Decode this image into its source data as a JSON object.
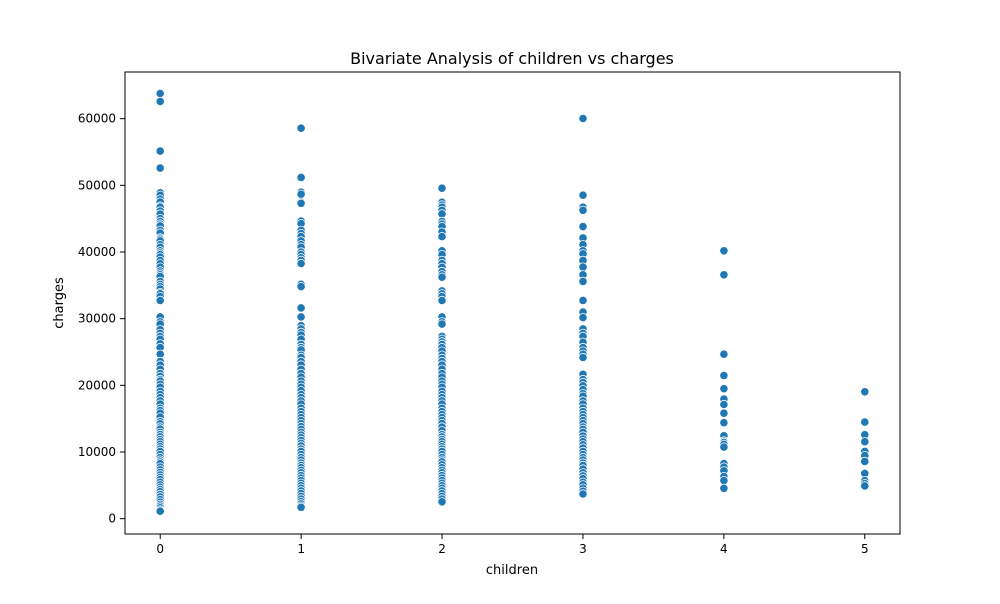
{
  "chart_data": {
    "type": "scatter",
    "title": "Bivariate Analysis of children vs charges",
    "xlabel": "children",
    "ylabel": "charges",
    "xlim": [
      -0.25,
      5.25
    ],
    "ylim": [
      -2300,
      67000
    ],
    "xticks": [
      0,
      1,
      2,
      3,
      4,
      5
    ],
    "yticks": [
      0,
      10000,
      20000,
      30000,
      40000,
      50000,
      60000
    ],
    "grid": false,
    "marker_color": "#1f77b4",
    "points": [
      {
        "x": 0,
        "y": [
          63770,
          62590,
          55135,
          52590,
          48885,
          48517,
          47928,
          47496,
          46889,
          46718,
          46151,
          45702,
          45008,
          44585,
          44202,
          43921,
          43254,
          42856,
          42112,
          41919,
          41661,
          41097,
          40720,
          40182,
          39871,
          39611,
          39241,
          38711,
          38245,
          37742,
          37165,
          36838,
          36580,
          36307,
          35585,
          35160,
          34806,
          34439,
          33907,
          33732,
          33307,
          32734,
          30260,
          29523,
          29186,
          28340,
          27808,
          27346,
          26926,
          26236,
          25678,
          24667,
          23568,
          23045,
          22413,
          21771,
          21348,
          20878,
          20630,
          20177,
          19719,
          19107,
          18608,
          18157,
          17663,
          17179,
          16577,
          16232,
          15820,
          15230,
          14571,
          14235,
          13747,
          13451,
          12950,
          12629,
          12270,
          11881,
          11538,
          11165,
          10796,
          10450,
          10085,
          9617,
          9182,
          8782,
          8520,
          8240,
          7740,
          7323,
          6948,
          6571,
          6198,
          5855,
          5472,
          5080,
          4719,
          4380,
          4040,
          3645,
          3260,
          2855,
          2480,
          2150,
          1880,
          1630,
          1300,
          1121
        ]
      },
      {
        "x": 1,
        "y": [
          58571,
          51195,
          48970,
          48673,
          47462,
          47305,
          44641,
          44260,
          43254,
          42760,
          42303,
          41661,
          41097,
          40720,
          40003,
          39611,
          39125,
          38746,
          38282,
          35160,
          34806,
          31620,
          30260,
          28950,
          28468,
          27941,
          27533,
          26926,
          26140,
          25678,
          25309,
          24513,
          24180,
          23568,
          23045,
          22412,
          21771,
          21232,
          20630,
          20177,
          19719,
          19199,
          18608,
          18157,
          17663,
          17179,
          16577,
          16069,
          15612,
          15161,
          14711,
          14254,
          13822,
          13405,
          12950,
          12557,
          12146,
          11735,
          11305,
          10915,
          10450,
          10085,
          9617,
          9182,
          8782,
          8347,
          7985,
          7640,
          7256,
          6875,
          6471,
          6082,
          5705,
          5325,
          4949,
          4564,
          4160,
          3756,
          3353,
          2955,
          2563,
          2213,
          1880,
          1712
        ]
      },
      {
        "x": 2,
        "y": [
          49577,
          47462,
          47055,
          46718,
          46255,
          45710,
          44585,
          44202,
          43813,
          42983,
          42303,
          40182,
          39611,
          38746,
          38282,
          37701,
          37079,
          36580,
          36219,
          34166,
          33732,
          33307,
          32734,
          30260,
          29523,
          29186,
          27346,
          26926,
          26509,
          26140,
          25678,
          25128,
          24513,
          24040,
          23568,
          23045,
          22413,
          21771,
          21232,
          20630,
          20177,
          19719,
          19107,
          18608,
          18157,
          17663,
          17179,
          16577,
          16069,
          15612,
          15161,
          14711,
          14254,
          13747,
          13198,
          12629,
          12270,
          11881,
          11538,
          11165,
          10796,
          10450,
          10085,
          9617,
          9182,
          8782,
          8520,
          8083,
          7640,
          7256,
          6875,
          6471,
          6082,
          5705,
          5325,
          4949,
          4564,
          4160,
          3756,
          3353,
          2955,
          2523
        ]
      },
      {
        "x": 3,
        "y": [
          60021,
          48517,
          46718,
          46255,
          43813,
          42112,
          41097,
          40182,
          39725,
          38746,
          37742,
          36580,
          35585,
          32734,
          30985,
          30166,
          28468,
          27808,
          27346,
          26467,
          25678,
          25128,
          24667,
          24180,
          21660,
          20878,
          20426,
          19933,
          19350,
          18767,
          18369,
          17663,
          17179,
          16577,
          16069,
          15612,
          15161,
          14711,
          14254,
          13747,
          13405,
          12950,
          12403,
          11938,
          11538,
          11075,
          10600,
          10085,
          9617,
          9182,
          8782,
          8347,
          7985,
          7445,
          6875,
          6420,
          5990,
          5474,
          5080,
          4563,
          4124,
          3704
        ]
      },
      {
        "x": 4,
        "y": [
          40182,
          36580,
          24671,
          21472,
          19496,
          17942,
          17128,
          15817,
          14394,
          12430,
          11652,
          11436,
          11152,
          10736,
          8277,
          7741,
          7173,
          6311,
          5709,
          4562
        ]
      },
      {
        "x": 5,
        "y": [
          19023,
          14478,
          12592,
          11552,
          10097,
          9459,
          8596,
          6791,
          5693,
          5257,
          4916
        ]
      }
    ]
  }
}
